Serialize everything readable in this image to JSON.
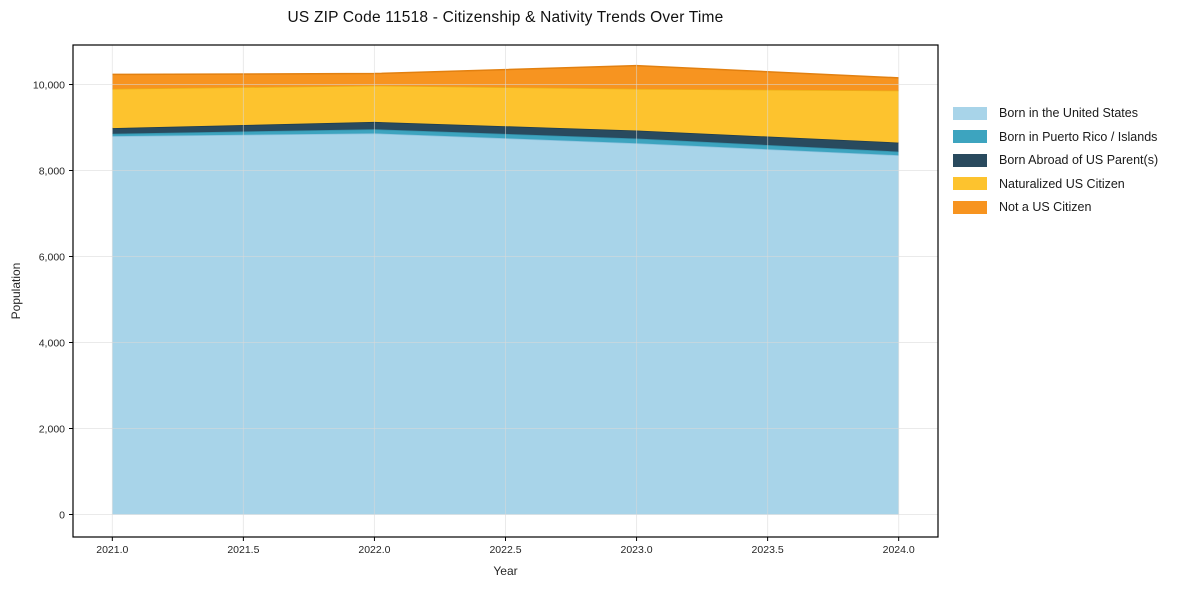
{
  "chart_data": {
    "type": "area",
    "stacked": true,
    "title": "US ZIP Code 11518 - Citizenship & Nativity Trends Over Time",
    "xlabel": "Year",
    "ylabel": "Population",
    "x": [
      2021,
      2022,
      2023,
      2024
    ],
    "series": [
      {
        "id": "born-in-us",
        "name": "Born in the United States",
        "color": "#a8d4e9",
        "edge": "#8bc2de",
        "values": [
          8800,
          8865,
          8635,
          8355
        ]
      },
      {
        "id": "born-in-pr-islands",
        "name": "Born in Puerto Rico / Islands",
        "color": "#3da4bf",
        "edge": "#3391ab",
        "values": [
          55,
          95,
          110,
          85
        ]
      },
      {
        "id": "born-abroad",
        "name": "Born Abroad of US Parent(s)",
        "color": "#294a5e",
        "edge": "#1f3c4d",
        "values": [
          130,
          170,
          185,
          210
        ]
      },
      {
        "id": "naturalized",
        "name": "Naturalized US Citizen",
        "color": "#fdc32e",
        "edge": "#eead15",
        "values": [
          915,
          845,
          970,
          1210
        ]
      },
      {
        "id": "not-citizen",
        "name": "Not a US Citizen",
        "color": "#f79420",
        "edge": "#e28010",
        "values": [
          335,
          280,
          540,
          295
        ]
      }
    ],
    "xticks": [
      2021,
      2021.5,
      2022,
      2022.5,
      2023,
      2023.5,
      2024
    ],
    "xtick_labels": [
      "2021.0",
      "2021.5",
      "2022.0",
      "2022.5",
      "2023.0",
      "2023.5",
      "2024.0"
    ],
    "yticks": [
      0,
      2000,
      4000,
      6000,
      8000,
      10000
    ],
    "ytick_labels": [
      "0",
      "2,000",
      "4,000",
      "6,000",
      "8,000",
      "10,000"
    ],
    "xlim": [
      2020.85,
      2024.15
    ],
    "ylim": [
      -523,
      10919
    ],
    "grid": true,
    "grid_color": "#d9d9d9",
    "axis_color": "#000000",
    "tick_label_color": "#262626",
    "legend_position": "right"
  }
}
